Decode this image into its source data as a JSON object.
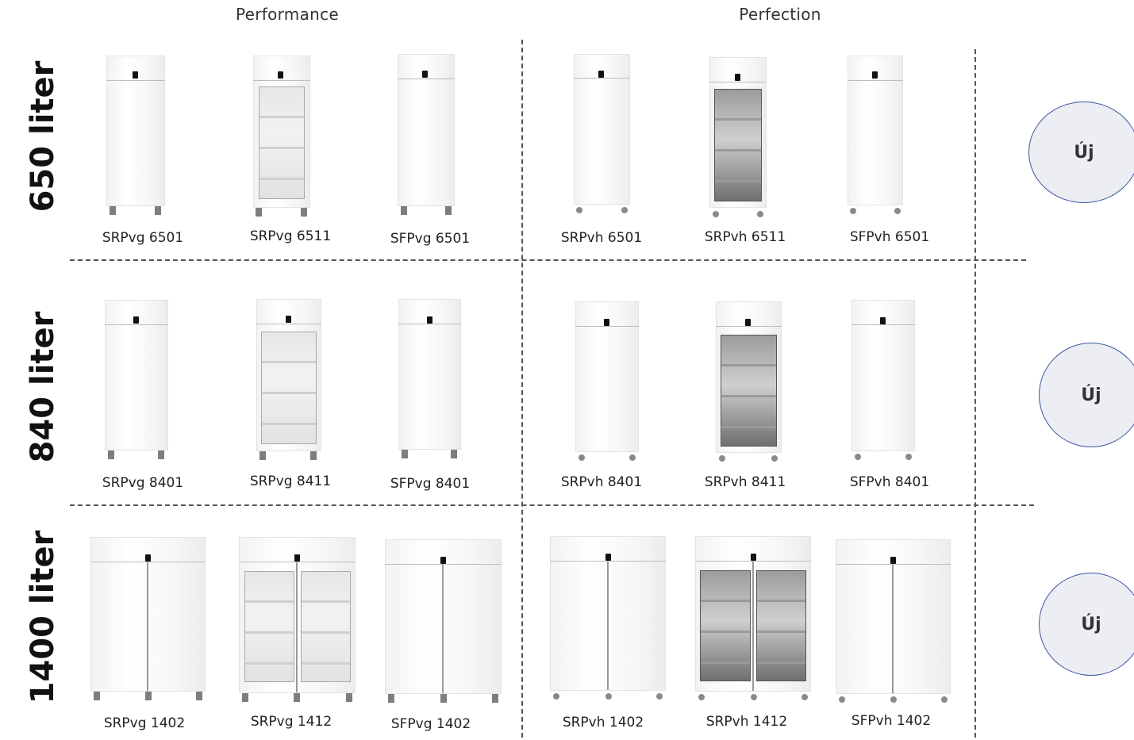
{
  "columns": {
    "performance": "Performance",
    "perfection": "Perfection"
  },
  "rows": [
    {
      "volume": "650 liter",
      "badge": "Új",
      "models": [
        "SRPvg 6501",
        "SRPvg 6511",
        "SFPvg 6501",
        "SRPvh 6501",
        "SRPvh 6511",
        "SFPvh 6501"
      ]
    },
    {
      "volume": "840 liter",
      "badge": "Új",
      "models": [
        "SRPvg 8401",
        "SRPvg 8411",
        "SFPvg 8401",
        "SRPvh 8401",
        "SRPvh 8411",
        "SFPvh 8401"
      ]
    },
    {
      "volume": "1400 liter",
      "badge": "Új",
      "models": [
        "SRPvg 1402",
        "SRPvg 1412",
        "SFPvg 1402",
        "SRPvh 1402",
        "SRPvh 1412",
        "SFPvh 1402"
      ]
    }
  ],
  "colors": {
    "badge_border": "#3b57a0",
    "badge_fill": "#eceef3",
    "divider": "#555555"
  }
}
